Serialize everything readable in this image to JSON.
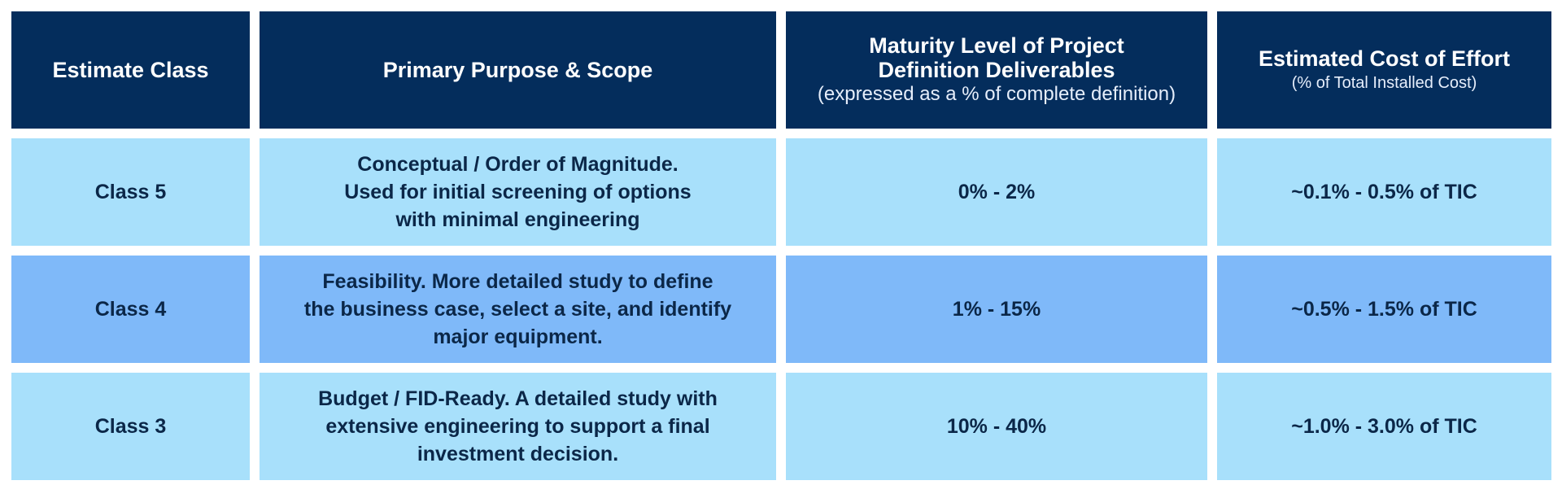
{
  "header": {
    "col1": "Estimate Class",
    "col2": "Primary Purpose & Scope",
    "col3_line1": "Maturity Level of Project",
    "col3_line2": "Definition Deliverables",
    "col3_sub": "(expressed as a % of complete definition)",
    "col4": "Estimated Cost of Effort",
    "col4_sub": "(% of Total Installed Cost)"
  },
  "colors": {
    "header_bg": "#042d5c",
    "row_light": "#a8e0fb",
    "row_mid": "#7fb9f9",
    "body_text": "#0b2748"
  },
  "rows": [
    {
      "class": "Class 5",
      "purpose": [
        "Conceptual / Order of Magnitude.",
        "Used for initial screening of options",
        "with minimal engineering"
      ],
      "maturity": "0% - 2%",
      "cost": "~0.1% - 0.5% of TIC"
    },
    {
      "class": "Class 4",
      "purpose": [
        "Feasibility. More detailed study to define",
        "the business case, select a site, and identify",
        "major equipment."
      ],
      "maturity": "1% - 15%",
      "cost": "~0.5% - 1.5% of TIC"
    },
    {
      "class": "Class 3",
      "purpose": [
        "Budget / FID-Ready. A detailed study with",
        "extensive engineering to support a final",
        "investment decision."
      ],
      "maturity": "10% - 40%",
      "cost": "~1.0% - 3.0% of TIC"
    }
  ]
}
